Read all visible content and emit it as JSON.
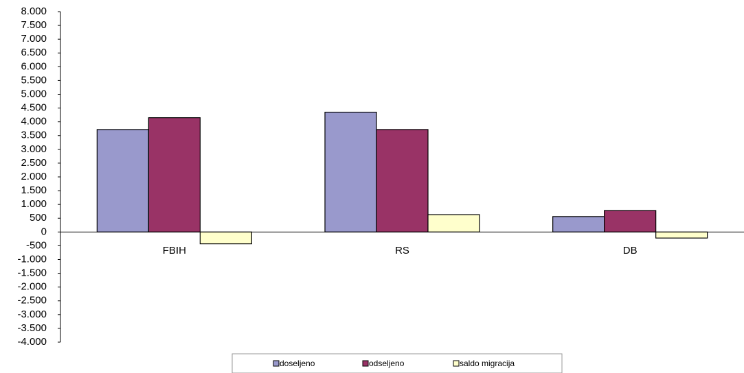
{
  "chart_data": {
    "type": "bar",
    "categories": [
      "FBIH",
      "RS",
      "DB"
    ],
    "series": [
      {
        "name": "doseljeno",
        "color": "#9999cc",
        "values": [
          3720,
          4350,
          560
        ]
      },
      {
        "name": "odseljeno",
        "color": "#993366",
        "values": [
          4150,
          3720,
          780
        ]
      },
      {
        "name": "saldo migracija",
        "color": "#ffffcc",
        "values": [
          -430,
          630,
          -220
        ]
      }
    ],
    "ylim": [
      -4000,
      8000
    ],
    "yticks": [
      {
        "value": 8000,
        "label": "8.000"
      },
      {
        "value": 7500,
        "label": "7.500"
      },
      {
        "value": 7000,
        "label": "7.000"
      },
      {
        "value": 6500,
        "label": "6.500"
      },
      {
        "value": 6000,
        "label": "6.000"
      },
      {
        "value": 5500,
        "label": "5.500"
      },
      {
        "value": 5000,
        "label": "5.000"
      },
      {
        "value": 4500,
        "label": "4.500"
      },
      {
        "value": 4000,
        "label": "4.000"
      },
      {
        "value": 3500,
        "label": "3.500"
      },
      {
        "value": 3000,
        "label": "3.000"
      },
      {
        "value": 2500,
        "label": "2.500"
      },
      {
        "value": 2000,
        "label": "2.000"
      },
      {
        "value": 1500,
        "label": "1.500"
      },
      {
        "value": 1000,
        "label": "1.000"
      },
      500,
      0,
      -500,
      {
        "value": -1000,
        "label": "-1.000"
      },
      {
        "value": -1500,
        "label": "-1.500"
      },
      {
        "value": -2000,
        "label": "-2.000"
      },
      {
        "value": -2500,
        "label": "-2.500"
      },
      {
        "value": -3000,
        "label": "-3.000"
      },
      {
        "value": -3500,
        "label": "-3.500"
      },
      {
        "value": -4000,
        "label": "-4.000"
      }
    ],
    "grid": false,
    "legend": "bottom"
  }
}
